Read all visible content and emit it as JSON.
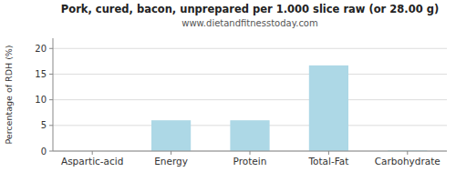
{
  "chart_data": {
    "type": "bar",
    "title": "Pork, cured, bacon, unprepared per 1.000 slice raw (or 28.00 g)",
    "subtitle": "www.dietandfitnesstoday.com",
    "categories": [
      "Aspartic-acid",
      "Energy",
      "Protein",
      "Total-Fat",
      "Carbohydrate"
    ],
    "values": [
      0.0,
      6.0,
      6.0,
      16.7,
      0.1
    ],
    "color": "#add8e6",
    "ylabel": "Percentage of RDH (%)",
    "ylim": [
      0,
      22
    ],
    "yticks": [
      0,
      5,
      10,
      15,
      20
    ],
    "grid": true
  }
}
